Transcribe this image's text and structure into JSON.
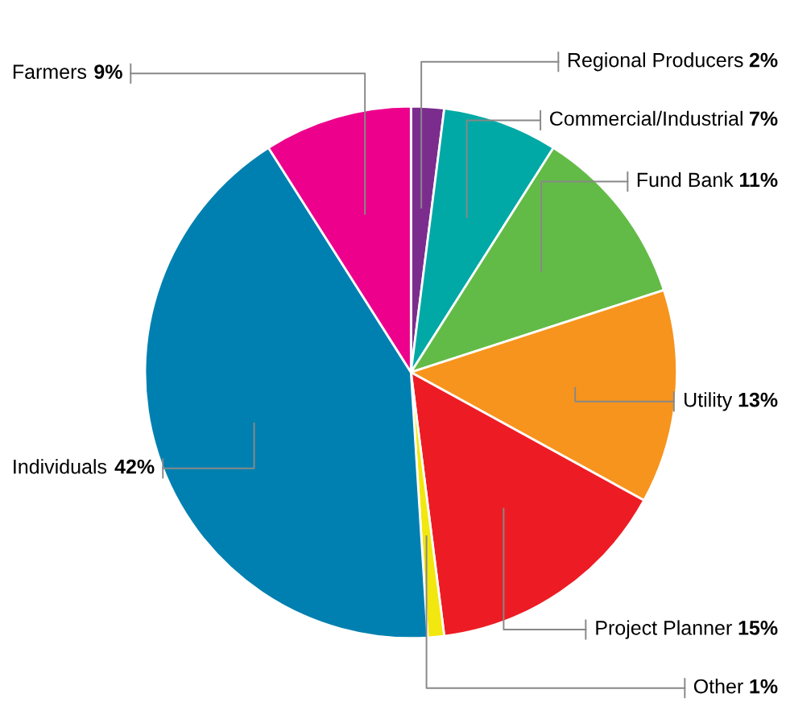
{
  "chart_data": {
    "type": "pie",
    "categories": [
      "Regional Producers",
      "Commercial/Industrial",
      "Fund Bank",
      "Utility",
      "Project Planner",
      "Other",
      "Individuals",
      "Farmers"
    ],
    "values": [
      2,
      7,
      11,
      13,
      15,
      1,
      42,
      9
    ],
    "value_labels": [
      "2%",
      "7%",
      "11%",
      "13%",
      "15%",
      "1%",
      "42%",
      "9%"
    ],
    "colors": [
      "#7b2d8e",
      "#00a9a5",
      "#62bb46",
      "#f7941d",
      "#ed1c24",
      "#f2e70f",
      "#0080b0",
      "#ec008c"
    ]
  }
}
